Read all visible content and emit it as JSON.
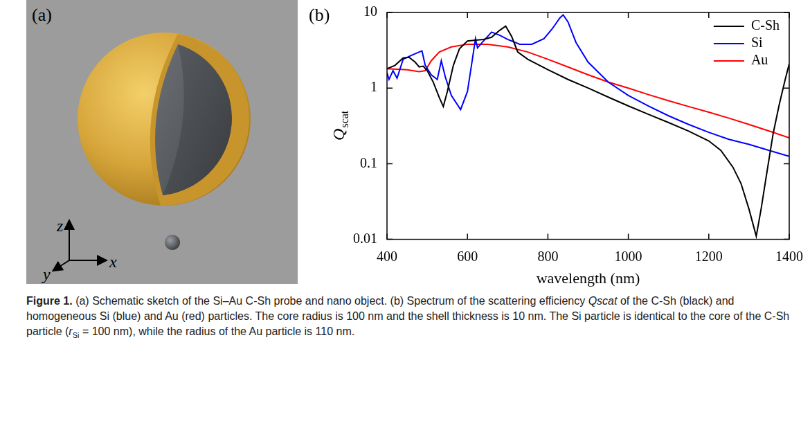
{
  "panel_a": {
    "label": "(a)",
    "axis_labels": {
      "x": "x",
      "y": "y",
      "z": "z"
    }
  },
  "chart_data": {
    "type": "line",
    "panel_label": "(b)",
    "x_label": "wavelength (nm)",
    "y_label": {
      "text": "Q",
      "subscript": "scat"
    },
    "log": "y",
    "grid": false,
    "legend": "upper right",
    "xlim": [
      400,
      1400
    ],
    "xticks": [
      400,
      600,
      800,
      1000,
      1200,
      1400
    ],
    "ylim": [
      0.01,
      10
    ],
    "yticks": [
      0.01,
      0.1,
      1,
      10
    ],
    "series": [
      {
        "name": "C-Sh",
        "color": "#000000",
        "x": [
          400,
          420,
          440,
          455,
          470,
          480,
          490,
          500,
          515,
          530,
          540,
          550,
          565,
          580,
          600,
          620,
          640,
          660,
          680,
          695,
          710,
          725,
          750,
          800,
          850,
          900,
          950,
          1000,
          1050,
          1100,
          1150,
          1200,
          1230,
          1260,
          1280,
          1300,
          1318,
          1330,
          1345,
          1360,
          1375,
          1390,
          1400
        ],
        "values": [
          1.8,
          2.0,
          2.5,
          2.55,
          2.2,
          1.9,
          1.95,
          1.7,
          1.2,
          0.75,
          0.57,
          0.9,
          2.0,
          3.3,
          4.2,
          4.3,
          4.4,
          4.7,
          5.8,
          6.6,
          4.8,
          3.0,
          2.4,
          1.75,
          1.3,
          1.0,
          0.76,
          0.58,
          0.45,
          0.35,
          0.27,
          0.2,
          0.15,
          0.09,
          0.055,
          0.025,
          0.011,
          0.025,
          0.08,
          0.25,
          0.6,
          1.3,
          2.1
        ]
      },
      {
        "name": "Si",
        "color": "#0000ff",
        "x": [
          400,
          405,
          415,
          425,
          440,
          460,
          480,
          487,
          495,
          510,
          525,
          535,
          545,
          560,
          583,
          600,
          610,
          620,
          625,
          640,
          660,
          680,
          700,
          730,
          760,
          790,
          810,
          830,
          838,
          850,
          870,
          900,
          950,
          1000,
          1050,
          1100,
          1150,
          1200,
          1250,
          1300,
          1350,
          1400
        ],
        "values": [
          1.6,
          1.3,
          1.7,
          1.35,
          2.4,
          2.7,
          3.0,
          3.1,
          2.0,
          1.5,
          1.3,
          2.3,
          1.4,
          0.8,
          0.52,
          0.9,
          2.0,
          4.5,
          3.4,
          4.2,
          5.5,
          5.0,
          4.4,
          3.8,
          3.8,
          4.5,
          6.0,
          8.5,
          9.3,
          7.5,
          4.0,
          2.2,
          1.2,
          0.8,
          0.58,
          0.43,
          0.33,
          0.26,
          0.21,
          0.18,
          0.15,
          0.125
        ]
      },
      {
        "name": "Au",
        "color": "#ff0000",
        "x": [
          400,
          450,
          480,
          495,
          510,
          530,
          560,
          600,
          650,
          700,
          750,
          800,
          850,
          900,
          950,
          1000,
          1050,
          1100,
          1150,
          1200,
          1250,
          1300,
          1350,
          1400
        ],
        "values": [
          1.8,
          1.75,
          1.65,
          1.7,
          2.3,
          3.0,
          3.5,
          3.8,
          3.8,
          3.5,
          3.0,
          2.4,
          1.9,
          1.5,
          1.2,
          1.0,
          0.82,
          0.68,
          0.57,
          0.48,
          0.4,
          0.33,
          0.27,
          0.22
        ]
      }
    ]
  },
  "caption": [
    {
      "text": "Figure 1.",
      "style": "bold"
    },
    {
      "text": " (a) Schematic sketch of the Si–Au C-Sh probe and nano object. (b) Spectrum of the scattering efficiency ",
      "style": "plain"
    },
    {
      "text": "Qscat",
      "style": "italic"
    },
    {
      "text": " of the C-Sh (black) and homogeneous Si (blue) and Au (red) particles. The core radius is 100 nm and the shell thickness is 10 nm. The Si particle is identical to the core of the C-Sh particle (",
      "style": "plain"
    },
    {
      "text": "r",
      "style": "italic"
    },
    {
      "text": "Si",
      "style": "sub"
    },
    {
      "text": " = 100 nm), while the radius of the Au particle is 110 nm.",
      "style": "plain"
    }
  ]
}
